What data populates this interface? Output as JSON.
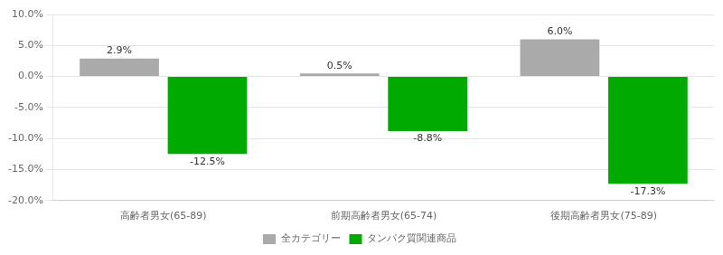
{
  "chart_data": {
    "type": "bar",
    "categories": [
      "高齢者男女(65-89)",
      "前期高齢者男女(65-74)",
      "後期高齢者男女(75-89)"
    ],
    "series": [
      {
        "name": "全カテゴリー",
        "color": "#aaaaaa",
        "values": [
          2.9,
          0.5,
          6.0
        ],
        "value_labels": [
          "2.9%",
          "0.5%",
          "6.0%"
        ]
      },
      {
        "name": "タンパク質関連商品",
        "color": "#00aa00",
        "values": [
          -12.5,
          -8.8,
          -17.3
        ],
        "value_labels": [
          "-12.5%",
          "-8.8%",
          "-17.3%"
        ]
      }
    ],
    "ylim": [
      -20.0,
      10.0
    ],
    "yticks": [
      {
        "value": -20.0,
        "label": "-20.0%"
      },
      {
        "value": -15.0,
        "label": "-15.0%"
      },
      {
        "value": -10.0,
        "label": "-10.0%"
      },
      {
        "value": -5.0,
        "label": "-5.0%"
      },
      {
        "value": 0.0,
        "label": "0.0%"
      },
      {
        "value": 5.0,
        "label": "5.0%"
      },
      {
        "value": 10.0,
        "label": "10.0%"
      }
    ],
    "grid": true,
    "legend": "bottom",
    "data_labels": true
  }
}
